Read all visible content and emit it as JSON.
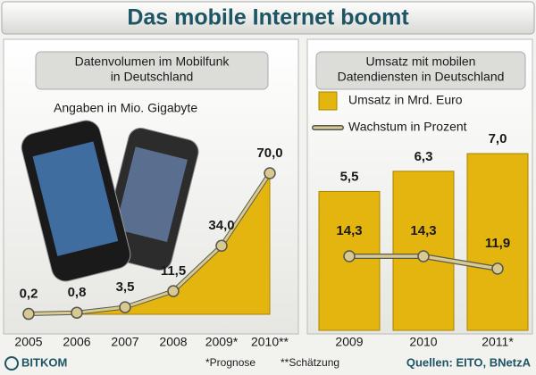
{
  "title": "Das mobile Internet boomt",
  "chart_data": [
    {
      "type": "area",
      "title": [
        "Datenvolumen im Mobilfunk",
        "in Deutschland"
      ],
      "subtitle": "Angaben in Mio. Gigabyte",
      "categories": [
        "2005",
        "2006",
        "2007",
        "2008",
        "2009*",
        "2010**"
      ],
      "values": [
        0.2,
        0.8,
        3.5,
        11.5,
        34.0,
        70.0
      ],
      "value_labels": [
        "0,2",
        "0,8",
        "3,5",
        "11,5",
        "34,0",
        "70,0"
      ],
      "color": "#e3b50e"
    },
    {
      "type": "bar",
      "title": [
        "Umsatz mit mobilen",
        "Datendiensten in Deutschland"
      ],
      "categories": [
        "2009",
        "2010",
        "2011*"
      ],
      "series": [
        {
          "name": "Umsatz in Mrd. Euro",
          "type": "bar",
          "color": "#e3b50e",
          "values": [
            5.5,
            6.3,
            7.0
          ],
          "value_labels": [
            "5,5",
            "6,3",
            "7,0"
          ]
        },
        {
          "name": "Wachstum in Prozent",
          "type": "line",
          "axis": "y2",
          "color": "#d8c98e",
          "values": [
            14.3,
            14.3,
            11.9
          ],
          "value_labels": [
            "14,3",
            "14,3",
            "11,9"
          ]
        }
      ]
    }
  ],
  "footnotes": [
    "*Prognose",
    "**Schätzung"
  ],
  "source": "Quellen: EITO, BNetzA",
  "logo": "BITKOM"
}
